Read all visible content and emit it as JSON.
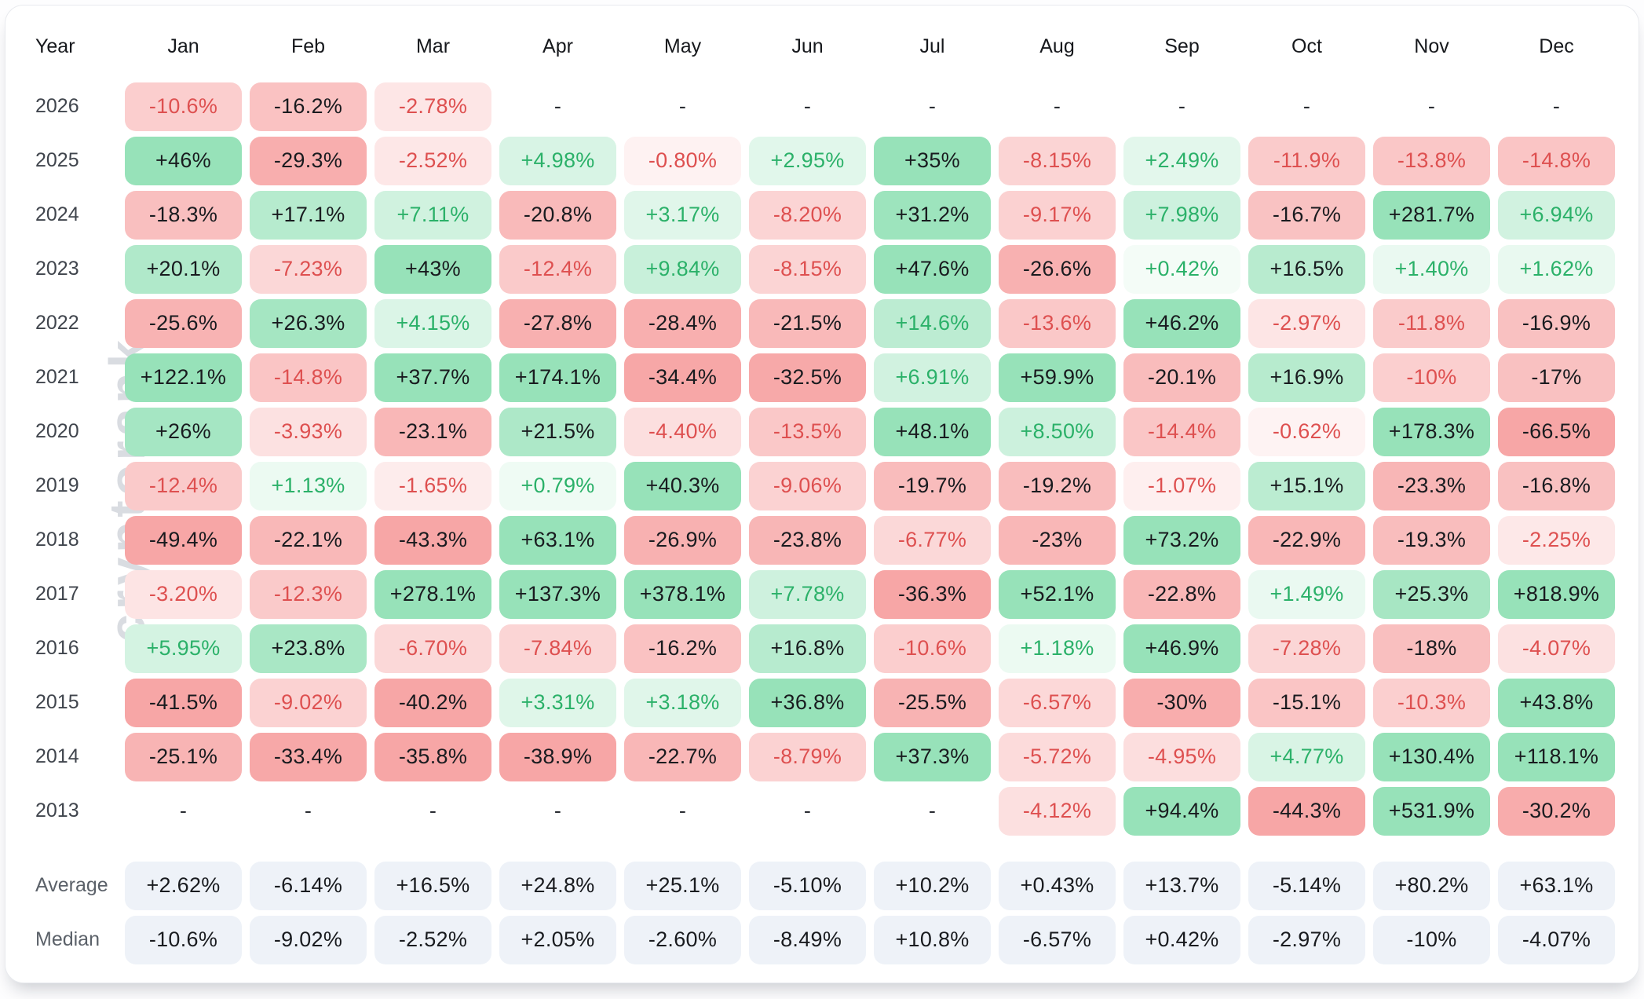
{
  "watermark": "cryptorank",
  "chart_data": {
    "type": "heatmap",
    "columns": [
      "Year",
      "Jan",
      "Feb",
      "Mar",
      "Apr",
      "May",
      "Jun",
      "Jul",
      "Aug",
      "Sep",
      "Oct",
      "Nov",
      "Dec"
    ],
    "empty_marker": "-",
    "rows": [
      {
        "year": "2026",
        "values": [
          "-10.6%",
          "-16.2%",
          "-2.78%",
          "-",
          "-",
          "-",
          "-",
          "-",
          "-",
          "-",
          "-",
          "-"
        ]
      },
      {
        "year": "2025",
        "values": [
          "+46%",
          "-29.3%",
          "-2.52%",
          "+4.98%",
          "-0.80%",
          "+2.95%",
          "+35%",
          "-8.15%",
          "+2.49%",
          "-11.9%",
          "-13.8%",
          "-14.8%"
        ]
      },
      {
        "year": "2024",
        "values": [
          "-18.3%",
          "+17.1%",
          "+7.11%",
          "-20.8%",
          "+3.17%",
          "-8.20%",
          "+31.2%",
          "-9.17%",
          "+7.98%",
          "-16.7%",
          "+281.7%",
          "+6.94%"
        ]
      },
      {
        "year": "2023",
        "values": [
          "+20.1%",
          "-7.23%",
          "+43%",
          "-12.4%",
          "+9.84%",
          "-8.15%",
          "+47.6%",
          "-26.6%",
          "+0.42%",
          "+16.5%",
          "+1.40%",
          "+1.62%"
        ]
      },
      {
        "year": "2022",
        "values": [
          "-25.6%",
          "+26.3%",
          "+4.15%",
          "-27.8%",
          "-28.4%",
          "-21.5%",
          "+14.6%",
          "-13.6%",
          "+46.2%",
          "-2.97%",
          "-11.8%",
          "-16.9%"
        ]
      },
      {
        "year": "2021",
        "values": [
          "+122.1%",
          "-14.8%",
          "+37.7%",
          "+174.1%",
          "-34.4%",
          "-32.5%",
          "+6.91%",
          "+59.9%",
          "-20.1%",
          "+16.9%",
          "-10%",
          "-17%"
        ]
      },
      {
        "year": "2020",
        "values": [
          "+26%",
          "-3.93%",
          "-23.1%",
          "+21.5%",
          "-4.40%",
          "-13.5%",
          "+48.1%",
          "+8.50%",
          "-14.4%",
          "-0.62%",
          "+178.3%",
          "-66.5%"
        ]
      },
      {
        "year": "2019",
        "values": [
          "-12.4%",
          "+1.13%",
          "-1.65%",
          "+0.79%",
          "+40.3%",
          "-9.06%",
          "-19.7%",
          "-19.2%",
          "-1.07%",
          "+15.1%",
          "-23.3%",
          "-16.8%"
        ]
      },
      {
        "year": "2018",
        "values": [
          "-49.4%",
          "-22.1%",
          "-43.3%",
          "+63.1%",
          "-26.9%",
          "-23.8%",
          "-6.77%",
          "-23%",
          "+73.2%",
          "-22.9%",
          "-19.3%",
          "-2.25%"
        ]
      },
      {
        "year": "2017",
        "values": [
          "-3.20%",
          "-12.3%",
          "+278.1%",
          "+137.3%",
          "+378.1%",
          "+7.78%",
          "-36.3%",
          "+52.1%",
          "-22.8%",
          "+1.49%",
          "+25.3%",
          "+818.9%"
        ]
      },
      {
        "year": "2016",
        "values": [
          "+5.95%",
          "+23.8%",
          "-6.70%",
          "-7.84%",
          "-16.2%",
          "+16.8%",
          "-10.6%",
          "+1.18%",
          "+46.9%",
          "-7.28%",
          "-18%",
          "-4.07%"
        ]
      },
      {
        "year": "2015",
        "values": [
          "-41.5%",
          "-9.02%",
          "-40.2%",
          "+3.31%",
          "+3.18%",
          "+36.8%",
          "-25.5%",
          "-6.57%",
          "-30%",
          "-15.1%",
          "-10.3%",
          "+43.8%"
        ]
      },
      {
        "year": "2014",
        "values": [
          "-25.1%",
          "-33.4%",
          "-35.8%",
          "-38.9%",
          "-22.7%",
          "-8.79%",
          "+37.3%",
          "-5.72%",
          "-4.95%",
          "+4.77%",
          "+130.4%",
          "+118.1%"
        ]
      },
      {
        "year": "2013",
        "values": [
          "-",
          "-",
          "-",
          "-",
          "-",
          "-",
          "-",
          "-4.12%",
          "+94.4%",
          "-44.3%",
          "+531.9%",
          "-30.2%"
        ]
      }
    ],
    "summary_rows": [
      {
        "label": "Average",
        "values": [
          "+2.62%",
          "-6.14%",
          "+16.5%",
          "+24.8%",
          "+25.1%",
          "-5.10%",
          "+10.2%",
          "+0.43%",
          "+13.7%",
          "-5.14%",
          "+80.2%",
          "+63.1%"
        ]
      },
      {
        "label": "Median",
        "values": [
          "-10.6%",
          "-9.02%",
          "-2.52%",
          "+2.05%",
          "-2.60%",
          "-8.49%",
          "+10.8%",
          "-6.57%",
          "+0.42%",
          "-2.97%",
          "-10%",
          "-4.07%"
        ]
      }
    ],
    "colors": {
      "positive_full": "#97e2b9",
      "negative_full": "#f7a6a6",
      "positive_text": "#2bb169",
      "negative_text": "#de5050",
      "dark_text": "#191b1f",
      "summary_bg": "#eef2f8",
      "watermark_color": "#d9dce1"
    },
    "color_scale": {
      "bg_scale": "sqrt",
      "bg_scale_denominator": 35,
      "dark_text_threshold_percent": 15
    }
  }
}
